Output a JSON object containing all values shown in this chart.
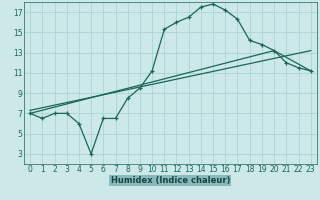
{
  "title": "",
  "xlabel": "Humidex (Indice chaleur)",
  "bg_color": "#cce8e8",
  "grid_color": "#aad4d4",
  "line_color": "#1a6655",
  "xlabel_bg": "#88bbbb",
  "xlim": [
    -0.5,
    23.5
  ],
  "ylim": [
    2.0,
    18.0
  ],
  "xticks": [
    0,
    1,
    2,
    3,
    4,
    5,
    6,
    7,
    8,
    9,
    10,
    11,
    12,
    13,
    14,
    15,
    16,
    17,
    18,
    19,
    20,
    21,
    22,
    23
  ],
  "yticks": [
    3,
    5,
    7,
    9,
    11,
    13,
    15,
    17
  ],
  "curve1_x": [
    0,
    1,
    2,
    3,
    4,
    5,
    6,
    7,
    8,
    9,
    10,
    11,
    12,
    13,
    14,
    15,
    16,
    17,
    18,
    19,
    20,
    21,
    22,
    23
  ],
  "curve1_y": [
    7.0,
    6.5,
    7.0,
    7.0,
    6.0,
    3.0,
    6.5,
    6.5,
    8.5,
    9.5,
    11.2,
    15.3,
    16.0,
    16.5,
    17.5,
    17.8,
    17.2,
    16.3,
    14.2,
    13.8,
    13.2,
    12.0,
    11.5,
    11.2
  ],
  "line1_x": [
    0,
    20,
    23
  ],
  "line1_y": [
    7.0,
    13.2,
    11.2
  ],
  "line2_x": [
    0,
    23
  ],
  "line2_y": [
    7.3,
    13.2
  ]
}
